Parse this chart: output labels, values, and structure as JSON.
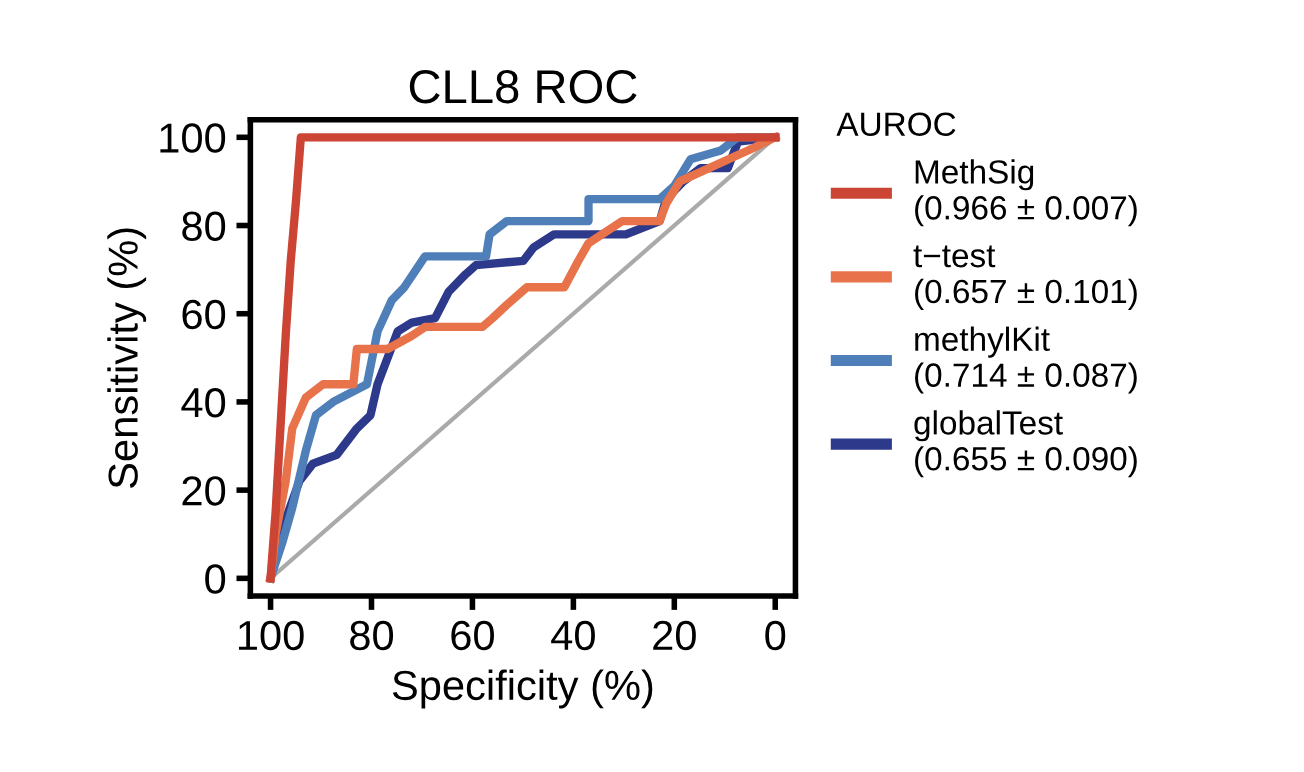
{
  "chart_data": {
    "type": "line",
    "title": "CLL8 ROC",
    "xlabel": "Specificity (%)",
    "ylabel": "Sensitivity (%)",
    "legend_title": "AUROC",
    "legend": "right",
    "grid": false,
    "marker": "none",
    "line_style": "solid",
    "xlim": [
      104,
      -4
    ],
    "ylim": [
      -4,
      104
    ],
    "xticks": [
      100,
      80,
      60,
      40,
      20,
      0
    ],
    "yticks": [
      0,
      20,
      40,
      60,
      80,
      100
    ],
    "series": [
      {
        "color": "#aaaaaa",
        "x": [
          100,
          0
        ],
        "values": [
          0,
          100
        ]
      },
      {
        "name": "MethSig\n(0.966 ± 0.007)",
        "color": "#cc4433",
        "x": [
          100,
          99,
          98,
          97,
          96,
          95,
          94,
          0
        ],
        "values": [
          0,
          15,
          35,
          55,
          72,
          85,
          100,
          100
        ]
      },
      {
        "name": "t−test\n(0.657 ± 0.101)",
        "color": "#e8734a",
        "x": [
          100,
          99,
          97,
          95.7,
          93,
          89.6,
          83.6,
          82.9,
          76.8,
          72,
          69.4,
          58,
          56,
          53.2,
          49.2,
          41.8,
          39,
          37,
          30.3,
          22.9,
          21.6,
          18.9,
          7.4,
          5.4,
          0
        ],
        "values": [
          0,
          10,
          22,
          34,
          41,
          44,
          44,
          52,
          52,
          55,
          57,
          57,
          59,
          62,
          66,
          66,
          72,
          76,
          81,
          81,
          85,
          90,
          96,
          97,
          100
        ]
      },
      {
        "name": "methylKit\n(0.714 ± 0.087)",
        "color": "#4f7fb8",
        "x": [
          100,
          97.7,
          95.7,
          93,
          91,
          87.6,
          80.9,
          78.8,
          76,
          73.5,
          69.4,
          57.3,
          56.6,
          53.2,
          37,
          37,
          22.9,
          20,
          16.8,
          10.8,
          7.4,
          0
        ],
        "values": [
          0,
          8,
          16,
          29,
          37,
          40,
          44,
          56,
          63,
          66,
          73,
          73,
          78,
          81,
          81,
          86,
          86,
          89,
          95,
          97,
          100,
          100
        ]
      },
      {
        "name": "globalTest\n(0.655 ± 0.090)",
        "color": "#2d3a8c",
        "x": [
          100,
          99,
          94.3,
          91.6,
          86.9,
          82.9,
          80.2,
          78.8,
          74.8,
          72,
          67.4,
          64.7,
          61.3,
          59.3,
          49.9,
          47.9,
          43.8,
          29.6,
          22.9,
          21.6,
          18.2,
          14.8,
          9.4,
          7.4,
          0
        ],
        "values": [
          0,
          7,
          22,
          26,
          28,
          34,
          37,
          44,
          56,
          58,
          59,
          65,
          69,
          71,
          72,
          75,
          78,
          78,
          81,
          86,
          90,
          93,
          93,
          99,
          100
        ]
      }
    ]
  }
}
